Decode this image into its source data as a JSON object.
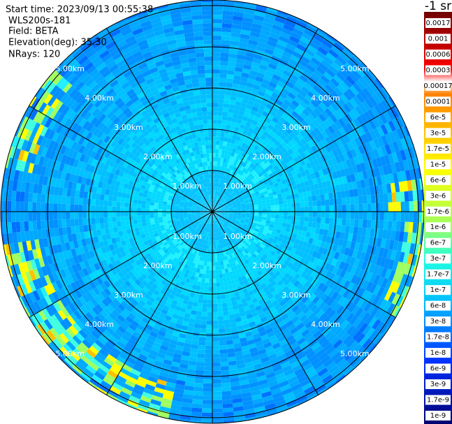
{
  "info": {
    "start_time": "Start time: 2023/09/13 00:55:38",
    "instrument": "WLS200s-181",
    "field": "Field: BETA",
    "elevation": "Elevation(deg): 35.30",
    "nrays": "NRays: 120"
  },
  "rings": {
    "labels": [
      "1.00km",
      "2.00km",
      "3.00km",
      "4.00km",
      "5.00km"
    ]
  },
  "colorbar": {
    "title": "-1 sr",
    "labels": [
      "0.0017",
      "0.001",
      "0.0006",
      "0.0003",
      "0.00017",
      "0.0001",
      "6e-5",
      "3e-5",
      "1.7e-5",
      "1e-5",
      "6e-6",
      "3e-6",
      "1.7e-6",
      "1e-6",
      "6e-7",
      "3e-7",
      "1.7e-7",
      "1e-7",
      "6e-8",
      "3e-8",
      "1.7e-8",
      "1e-8",
      "6e-9",
      "3e-9",
      "1.7e-9",
      "1e-9"
    ]
  }
}
